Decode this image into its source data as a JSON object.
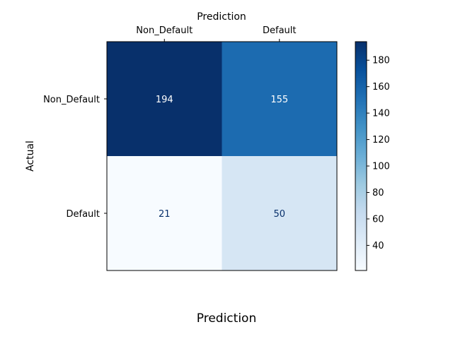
{
  "chart_data": {
    "type": "heatmap",
    "top_axis_title": "Prediction",
    "bottom_title": "Prediction",
    "ylabel": "Actual",
    "x_categories": [
      "Non_Default",
      "Default"
    ],
    "y_categories": [
      "Non_Default",
      "Default"
    ],
    "values": [
      [
        194,
        155
      ],
      [
        21,
        50
      ]
    ],
    "colormap": "Blues",
    "color_range": [
      21,
      194
    ],
    "colorbar_ticks": [
      40,
      60,
      80,
      100,
      120,
      140,
      160,
      180
    ],
    "colors": {
      "low": "#f7fbff",
      "high": "#08306b",
      "text_dark": "#08306b",
      "text_light": "#ffffff"
    }
  }
}
